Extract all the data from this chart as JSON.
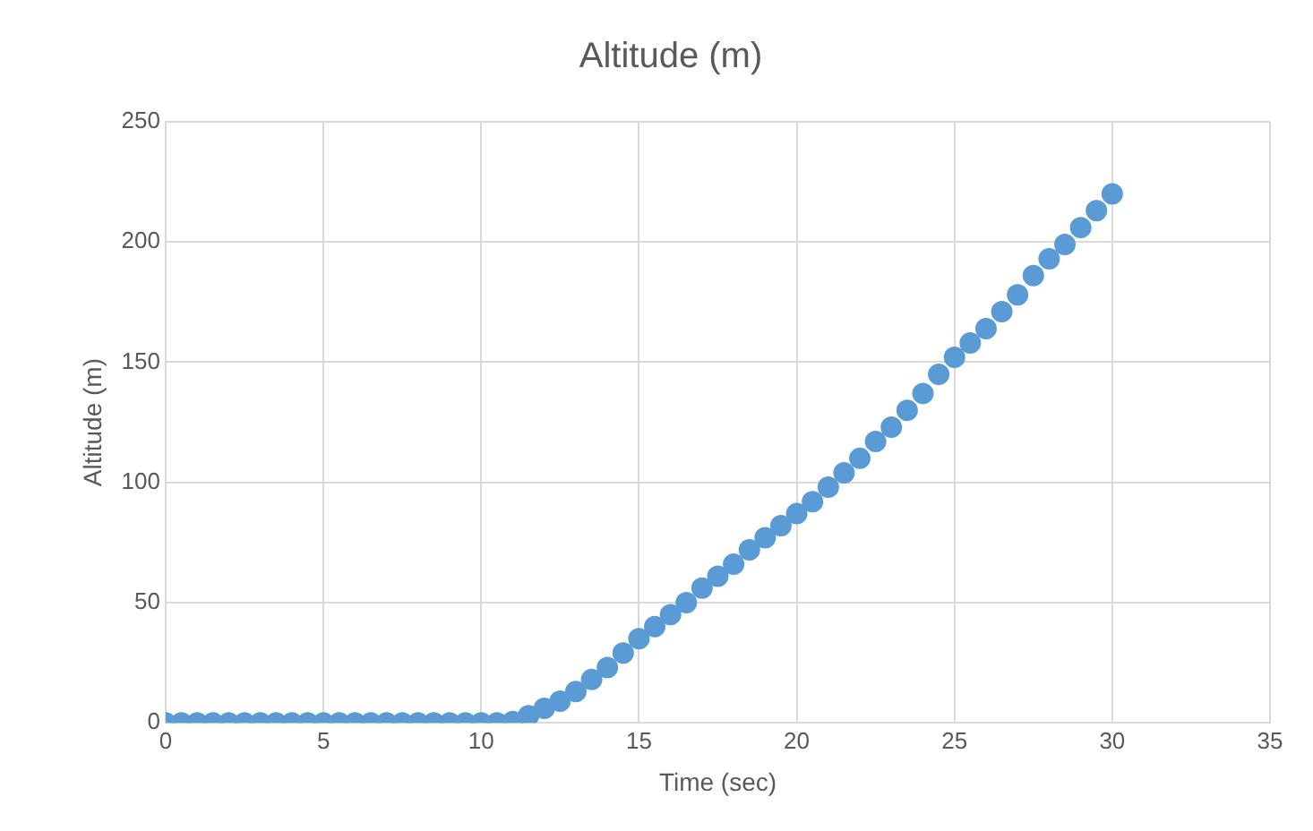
{
  "chart_data": {
    "type": "scatter",
    "title": "Altitude (m)",
    "xlabel": "Time (sec)",
    "ylabel": "Altitude (m)",
    "x": [
      0,
      0.5,
      1,
      1.5,
      2,
      2.5,
      3,
      3.5,
      4,
      4.5,
      5,
      5.5,
      6,
      6.5,
      7,
      7.5,
      8,
      8.5,
      9,
      9.5,
      10,
      10.5,
      11,
      11.5,
      12,
      12.5,
      13,
      13.5,
      14,
      14.5,
      15,
      15.5,
      16,
      16.5,
      17,
      17.5,
      18,
      18.5,
      19,
      19.5,
      20,
      20.5,
      21,
      21.5,
      22,
      22.5,
      23,
      23.5,
      24,
      24.5,
      25,
      25.5,
      26,
      26.5,
      27,
      27.5,
      28,
      28.5,
      29,
      29.5,
      30
    ],
    "series": [
      {
        "color": "#5b9bd5",
        "values": [
          0,
          0,
          0,
          0,
          0,
          0,
          0,
          0,
          0,
          0,
          0,
          0,
          0,
          0,
          0,
          0,
          0,
          0,
          0,
          0,
          0,
          0,
          0.5,
          3,
          6,
          9,
          13,
          18,
          23,
          29,
          35,
          40,
          45,
          50,
          56,
          61,
          66,
          72,
          77,
          82,
          87,
          92,
          98,
          104,
          110,
          117,
          123,
          130,
          137,
          145,
          152,
          158,
          164,
          171,
          178,
          186,
          193,
          199,
          206,
          213,
          220
        ]
      }
    ],
    "xlim": [
      0,
      35
    ],
    "xticks": [
      0,
      5,
      10,
      15,
      20,
      25,
      30,
      35
    ],
    "ylim": [
      0,
      250
    ],
    "yticks": [
      0,
      50,
      100,
      150,
      200,
      250
    ],
    "grid": true,
    "marker": "circle"
  }
}
